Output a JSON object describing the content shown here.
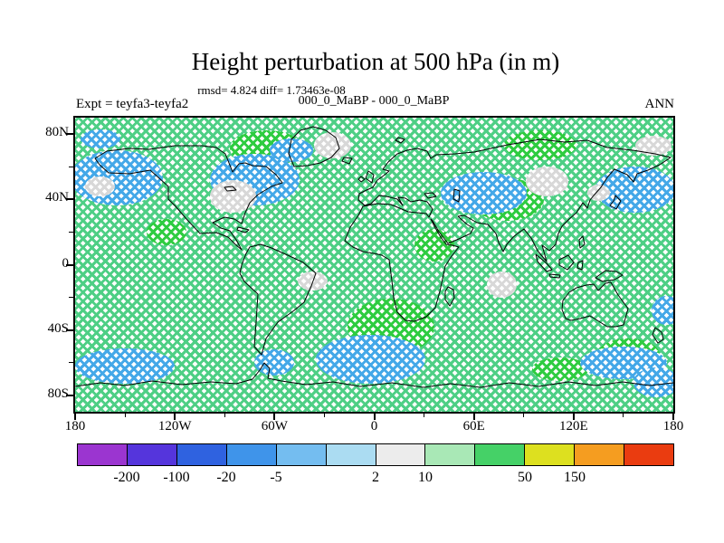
{
  "header": {
    "title": "Height perturbation at 500 hPa (in m)",
    "stats_line": "rmsd= 4.824 diff= 1.73463e-08",
    "comparison_line": "000_0_MaBP - 000_0_MaBP",
    "experiment_label": "Expt = teyfa3-teyfa2",
    "season_label": "ANN"
  },
  "chart_data": {
    "type": "heatmap",
    "title": "Height perturbation at 500 hPa (in m)",
    "statistics": {
      "rmsd": 4.824,
      "diff": 1.73463e-08
    },
    "comparison": "000_0_MaBP - 000_0_MaBP",
    "experiment": "teyfa3-teyfa2",
    "season": "ANN",
    "projection": "equirectangular world map",
    "axes": {
      "lon_range": [
        -180,
        180
      ],
      "lat_range": [
        -90,
        90
      ],
      "lat_ticks": [
        {
          "value": 80,
          "label": "80N"
        },
        {
          "value": 40,
          "label": "40N"
        },
        {
          "value": 0,
          "label": "0"
        },
        {
          "value": -40,
          "label": "40S"
        },
        {
          "value": -80,
          "label": "80S"
        }
      ],
      "lon_ticks": [
        {
          "value": -180,
          "label": "180"
        },
        {
          "value": -120,
          "label": "120W"
        },
        {
          "value": -60,
          "label": "60W"
        },
        {
          "value": 0,
          "label": "0"
        },
        {
          "value": 60,
          "label": "60E"
        },
        {
          "value": 120,
          "label": "120E"
        },
        {
          "value": 180,
          "label": "180"
        }
      ],
      "lat_minor_step": 20,
      "lon_minor_step": 30
    },
    "colorbar": {
      "colors": [
        "#9b35d0",
        "#5535dc",
        "#2f62e0",
        "#3f94ea",
        "#74bdf0",
        "#abdcf2",
        "#ececec",
        "#a9e8b6",
        "#45d167",
        "#dde01f",
        "#f59d20",
        "#ea3c10"
      ],
      "labels": [
        {
          "text": "-200",
          "boundary": 1
        },
        {
          "text": "-100",
          "boundary": 2
        },
        {
          "text": "-20",
          "boundary": 3
        },
        {
          "text": "-5",
          "boundary": 4
        },
        {
          "text": "2",
          "boundary": 6
        },
        {
          "text": "10",
          "boundary": 7
        },
        {
          "text": "50",
          "boundary": 9
        },
        {
          "text": "150",
          "boundary": 10
        }
      ]
    },
    "field": {
      "base_color": "#4ecf85",
      "patch_colors": {
        "positive": "#2ecc40",
        "negative": "#44a8e8",
        "near_zero": "#d8d8d8"
      },
      "anomaly_patches": [
        {
          "sign": "positive",
          "lon": -65,
          "lat": 71,
          "lon_r": 22,
          "lat_r": 11
        },
        {
          "sign": "positive",
          "lon": 100,
          "lat": 73,
          "lon_r": 22,
          "lat_r": 9
        },
        {
          "sign": "positive",
          "lon": 80,
          "lat": 40,
          "lon_r": 22,
          "lat_r": 13
        },
        {
          "sign": "positive",
          "lon": 36,
          "lat": 12,
          "lon_r": 12,
          "lat_r": 10
        },
        {
          "sign": "positive",
          "lon": 10,
          "lat": -38,
          "lon_r": 26,
          "lat_r": 17
        },
        {
          "sign": "positive",
          "lon": 153,
          "lat": -55,
          "lon_r": 19,
          "lat_r": 10
        },
        {
          "sign": "positive",
          "lon": 112,
          "lat": -64,
          "lon_r": 17,
          "lat_r": 7
        },
        {
          "sign": "positive",
          "lon": -125,
          "lat": 20,
          "lon_r": 12,
          "lat_r": 8
        },
        {
          "sign": "negative",
          "lon": -155,
          "lat": 53,
          "lon_r": 28,
          "lat_r": 17
        },
        {
          "sign": "negative",
          "lon": -72,
          "lat": 52,
          "lon_r": 27,
          "lat_r": 16
        },
        {
          "sign": "negative",
          "lon": 66,
          "lat": 44,
          "lon_r": 26,
          "lat_r": 13
        },
        {
          "sign": "negative",
          "lon": 157,
          "lat": 46,
          "lon_r": 24,
          "lat_r": 14
        },
        {
          "sign": "negative",
          "lon": -2,
          "lat": -58,
          "lon_r": 33,
          "lat_r": 15
        },
        {
          "sign": "negative",
          "lon": -150,
          "lat": -62,
          "lon_r": 30,
          "lat_r": 11
        },
        {
          "sign": "negative",
          "lon": 150,
          "lat": -60,
          "lon_r": 26,
          "lat_r": 10
        },
        {
          "sign": "negative",
          "lon": -60,
          "lat": -60,
          "lon_r": 12,
          "lat_r": 8
        },
        {
          "sign": "negative",
          "lon": -50,
          "lat": 70,
          "lon_r": 13,
          "lat_r": 7
        },
        {
          "sign": "negative",
          "lon": 176,
          "lat": -28,
          "lon_r": 9,
          "lat_r": 9
        },
        {
          "sign": "negative",
          "lon": -165,
          "lat": 77,
          "lon_r": 12,
          "lat_r": 6
        },
        {
          "sign": "negative",
          "lon": 170,
          "lat": -72,
          "lon_r": 14,
          "lat_r": 9
        },
        {
          "sign": "near_zero",
          "lon": -25,
          "lat": 73,
          "lon_r": 11,
          "lat_r": 8
        },
        {
          "sign": "near_zero",
          "lon": 104,
          "lat": 51,
          "lon_r": 13,
          "lat_r": 9
        },
        {
          "sign": "near_zero",
          "lon": -165,
          "lat": 48,
          "lon_r": 9,
          "lat_r": 6
        },
        {
          "sign": "near_zero",
          "lon": -37,
          "lat": -10,
          "lon_r": 9,
          "lat_r": 6
        },
        {
          "sign": "near_zero",
          "lon": -85,
          "lat": 42,
          "lon_r": 14,
          "lat_r": 10
        },
        {
          "sign": "near_zero",
          "lon": 135,
          "lat": 44,
          "lon_r": 7,
          "lat_r": 5
        },
        {
          "sign": "near_zero",
          "lon": 77,
          "lat": -12,
          "lon_r": 9,
          "lat_r": 8
        },
        {
          "sign": "near_zero",
          "lon": 168,
          "lat": 73,
          "lon_r": 11,
          "lat_r": 6
        }
      ]
    }
  }
}
